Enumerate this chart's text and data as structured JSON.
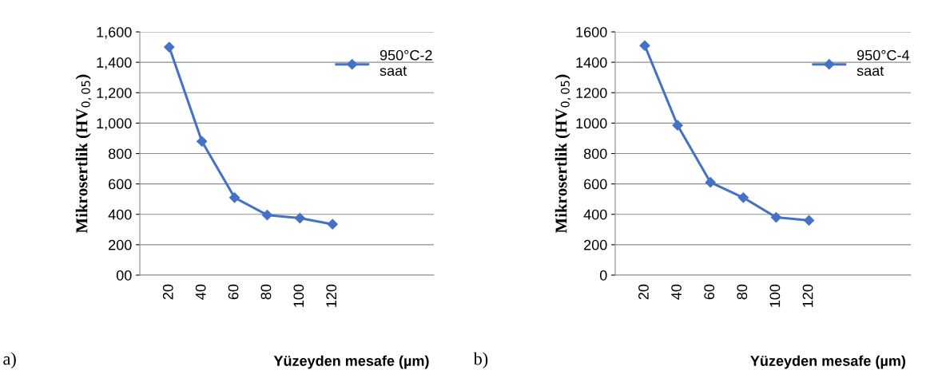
{
  "chart_data": [
    {
      "type": "line",
      "categories": [
        "20",
        "40",
        "60",
        "80",
        "100",
        "120",
        null,
        null,
        null
      ],
      "series": [
        {
          "name": "950°C-2\nsaat",
          "color": "#4472c4",
          "values": [
            1500,
            880,
            510,
            395,
            375,
            335,
            null,
            null,
            null
          ]
        }
      ],
      "ylim": [
        0,
        1600
      ],
      "yticks": [
        {
          "value": 0,
          "label": "00"
        },
        {
          "value": 200,
          "label": "200"
        },
        {
          "value": 400,
          "label": "400"
        },
        {
          "value": 600,
          "label": "600"
        },
        {
          "value": 800,
          "label": "800"
        },
        {
          "value": 1000,
          "label": "1,000"
        },
        {
          "value": 1200,
          "label": "1,200"
        },
        {
          "value": 1400,
          "label": "1,400"
        },
        {
          "value": 1600,
          "label": "1,600"
        }
      ],
      "xlabel": "Yüzeyden mesafe (µm)",
      "ylabel": "Mikrosertlik (HV$_{0,05}$)",
      "grid": "y",
      "legend": "top right",
      "marker": "diamond",
      "line_style": "solid",
      "annotations": [
        "a)"
      ]
    },
    {
      "type": "line",
      "categories": [
        "20",
        "40",
        "60",
        "80",
        "100",
        "120",
        null,
        null,
        null
      ],
      "series": [
        {
          "name": "950°C-4\nsaat",
          "color": "#4472c4",
          "values": [
            1510,
            985,
            610,
            510,
            380,
            360,
            null,
            null,
            null
          ]
        }
      ],
      "ylim": [
        0,
        1600
      ],
      "yticks": [
        0,
        200,
        400,
        600,
        800,
        1000,
        1200,
        1400,
        1600
      ],
      "xlabel": "Yüzeyden mesafe (µm)",
      "ylabel": "Mikrosertlik (HV$_{0,05}$)",
      "grid": "y",
      "legend": "top right",
      "marker": "diamond",
      "line_style": "solid",
      "annotations": [
        "b)"
      ]
    }
  ]
}
